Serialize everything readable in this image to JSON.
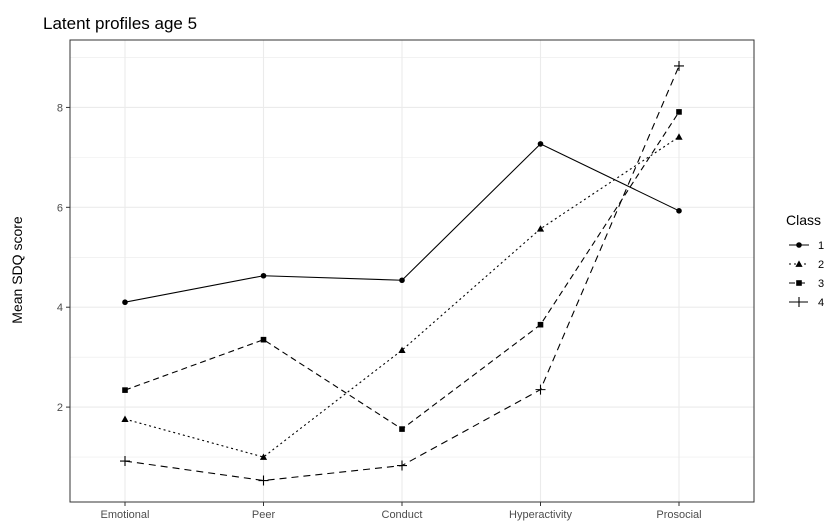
{
  "chart_data": {
    "type": "line",
    "title": "Latent profiles age 5",
    "xlabel": "",
    "ylabel": "Mean SDQ score",
    "categories": [
      "Emotional",
      "Peer",
      "Conduct",
      "Hyperactivity",
      "Prosocial"
    ],
    "y_ticks": [
      2,
      4,
      6,
      8
    ],
    "ylim": [
      0.1,
      9.35
    ],
    "grid": true,
    "legend": {
      "title": "Class",
      "placement": "right"
    },
    "series": [
      {
        "name": "1",
        "marker": "circle",
        "line_style": "solid",
        "values": [
          4.1,
          4.63,
          4.54,
          7.27,
          5.93
        ]
      },
      {
        "name": "2",
        "marker": "triangle",
        "line_style": "dotted",
        "values": [
          1.76,
          1.0,
          3.14,
          5.57,
          7.41
        ]
      },
      {
        "name": "3",
        "marker": "square",
        "line_style": "dashed",
        "values": [
          2.34,
          3.35,
          1.56,
          3.65,
          7.91
        ]
      },
      {
        "name": "4",
        "marker": "cross",
        "line_style": "longdash",
        "values": [
          0.92,
          0.53,
          0.83,
          2.35,
          8.83
        ]
      }
    ],
    "colors": {
      "line": "#000000",
      "grid": "#ebebeb",
      "panel_border": "#333333"
    }
  }
}
